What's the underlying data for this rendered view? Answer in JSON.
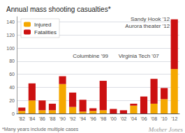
{
  "chart_data": {
    "type": "bar",
    "stacked": true,
    "title": "Annual mass shooting casualties*",
    "categories": [
      "'82",
      "'84",
      "'86",
      "'88",
      "'90",
      "'92",
      "'94",
      "'96",
      "'98",
      "'00",
      "'02",
      "'04",
      "'06",
      "'08",
      "'10",
      "'12"
    ],
    "series": [
      {
        "name": "Injured",
        "color": "#F5A800",
        "values": [
          4,
          20,
          5,
          5,
          45,
          10,
          3,
          4,
          5,
          0,
          0,
          12,
          0,
          15,
          22,
          68
        ]
      },
      {
        "name": "Fatalities",
        "color": "#CC1111",
        "values": [
          5,
          26,
          15,
          10,
          12,
          22,
          18,
          4,
          45,
          7,
          5,
          3,
          26,
          38,
          17,
          76
        ]
      }
    ],
    "ylim": [
      0,
      148
    ],
    "yticks": [
      0,
      20,
      40,
      60,
      80,
      100,
      120,
      140
    ],
    "grid": true,
    "legend": "upper left",
    "annotations": [
      {
        "text": "Columbine '99",
        "x": "'98",
        "y": 82
      },
      {
        "text": "Virginia Tech '07",
        "x": "'02",
        "y": 82
      },
      {
        "text": "Sandy Hook '12\nAurora theater '12",
        "x": "'12",
        "y": 128
      }
    ],
    "footnote": "*Many years include multiple cases",
    "watermark": "Mother Jones"
  }
}
